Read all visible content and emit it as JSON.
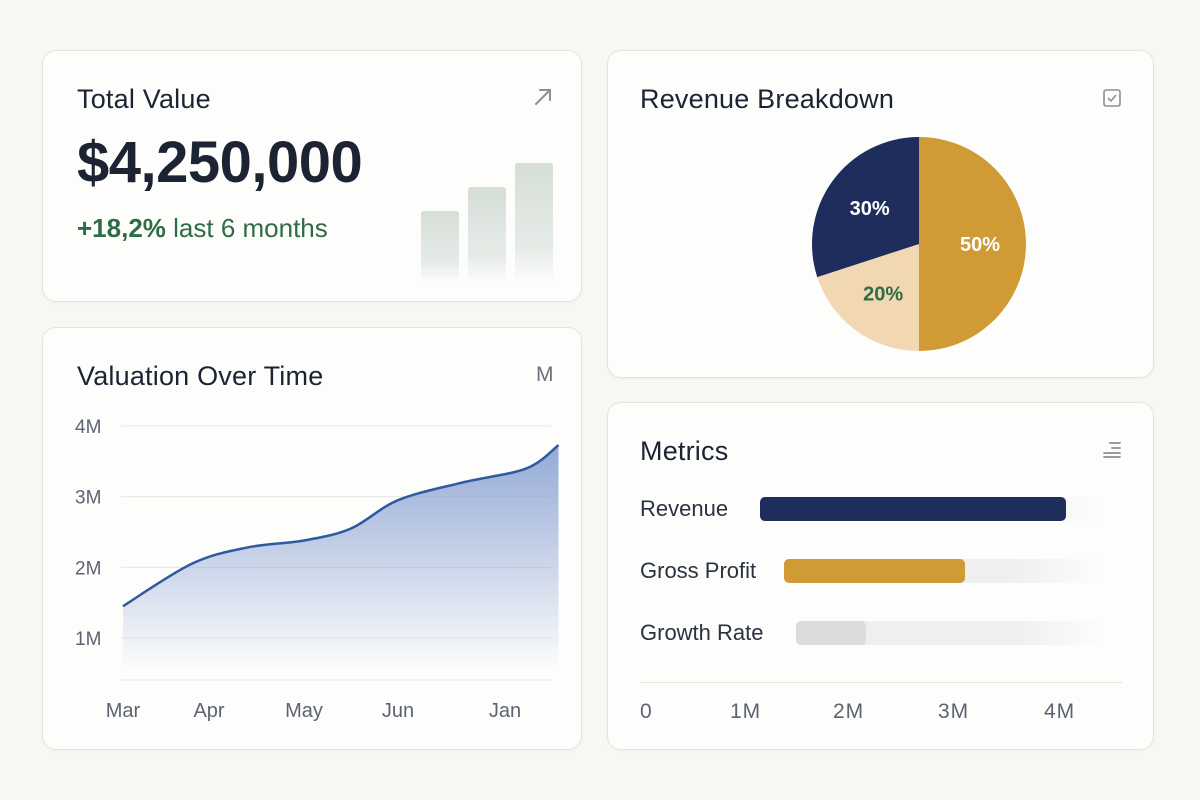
{
  "total_value_card": {
    "title": "Total Value",
    "value": "$4,250,000",
    "change_percent": "+18,2%",
    "change_label": "last 6 months",
    "icon": "arrow-up-right-icon",
    "positive_color": "#2f6b45"
  },
  "revenue_card": {
    "title": "Revenue Breakdown",
    "icon": "checkbox-icon",
    "chart_data": {
      "type": "pie",
      "slices": [
        {
          "label": "50%",
          "value": 50,
          "color": "#d09a35",
          "text_color": "#ffffff"
        },
        {
          "label": "20%",
          "value": 20,
          "color": "#f1d8b2",
          "text_color": "#2f6b45"
        },
        {
          "label": "30%",
          "value": 30,
          "color": "#1e2d5c",
          "text_color": "#ffffff"
        }
      ]
    }
  },
  "valuation_card": {
    "title": "Valuation Over Time",
    "unit_label": "M",
    "chart_data": {
      "type": "area",
      "categories": [
        "Mar",
        "Apr",
        "May",
        "Jun",
        "Jan"
      ],
      "y_ticks": [
        "4M",
        "3M",
        "2M",
        "1M"
      ],
      "y_tick_values": [
        4,
        3,
        2,
        1
      ],
      "ylim": [
        0.5,
        4.5
      ],
      "points": [
        [
          0,
          1.45
        ],
        [
          0.8,
          2.05
        ],
        [
          1.4,
          2.28
        ],
        [
          2.0,
          2.38
        ],
        [
          2.5,
          2.55
        ],
        [
          3.0,
          2.95
        ],
        [
          3.6,
          3.2
        ],
        [
          4.2,
          3.4
        ],
        [
          4.5,
          3.73
        ]
      ],
      "line_color": "#2f5aa0",
      "fill_color": "#8ea5d4"
    }
  },
  "metrics_card": {
    "title": "Metrics",
    "icon": "list-icon",
    "items": [
      {
        "label": "Revenue",
        "value": 3.0,
        "color": "#1e2d5c"
      },
      {
        "label": "Gross Profit",
        "value": 1.75,
        "color": "#d09a35"
      },
      {
        "label": "Growth Rate",
        "value": 0.7,
        "color": "#dcdcdc"
      }
    ],
    "axis_ticks": [
      "0",
      "1M",
      "2M",
      "3M",
      "4M"
    ]
  }
}
